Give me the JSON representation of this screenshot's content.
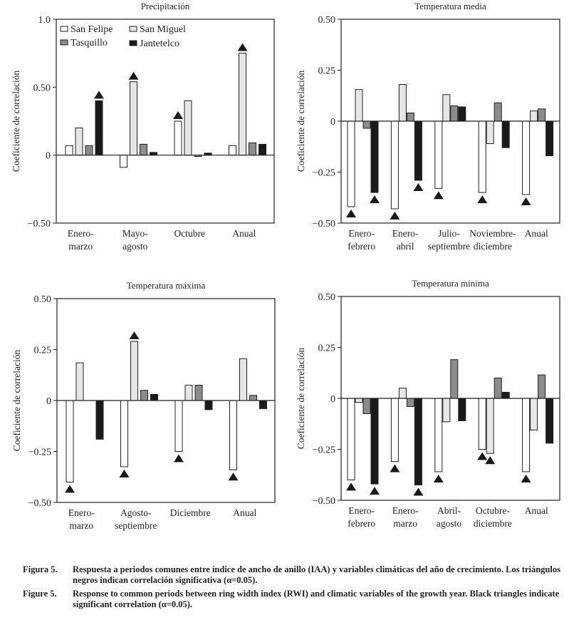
{
  "legend": [
    {
      "name": "San Felipe",
      "color": "#ffffff"
    },
    {
      "name": "Tasquillo",
      "color": "#8c8c8c"
    },
    {
      "name": "San Miguel",
      "color": "#e6e6e6"
    },
    {
      "name": "Jantetelco",
      "color": "#1a1a1a"
    }
  ],
  "chart_data": [
    {
      "type": "bar",
      "title": "Precipitación",
      "ylabel": "Coeficiente de correlación",
      "ylim": [
        -0.5,
        1.0
      ],
      "yticks": [
        {
          "value": 1.0,
          "label": "1.0"
        },
        {
          "value": 0.5,
          "label": "0.50"
        },
        {
          "value": 0,
          "label": "0"
        },
        {
          "value": -0.5,
          "label": "−0.50"
        }
      ],
      "categories": [
        [
          "Enero-",
          "marzo"
        ],
        [
          "Mayo-",
          "agosto"
        ],
        [
          "Octubre"
        ],
        [
          "Anual"
        ]
      ],
      "series": [
        {
          "name": "San Felipe",
          "color": "#ffffff",
          "values": [
            0.07,
            -0.09,
            0.25,
            0.07
          ],
          "significant": [
            false,
            false,
            true,
            false
          ]
        },
        {
          "name": "San Miguel",
          "color": "#e6e6e6",
          "values": [
            0.2,
            0.54,
            0.4,
            0.75
          ],
          "significant": [
            false,
            true,
            false,
            true
          ]
        },
        {
          "name": "Tasquillo",
          "color": "#8c8c8c",
          "values": [
            0.07,
            0.08,
            -0.01,
            0.09
          ],
          "significant": [
            false,
            false,
            false,
            false
          ]
        },
        {
          "name": "Jantetelco",
          "color": "#1a1a1a",
          "values": [
            0.4,
            0.02,
            0.015,
            0.08
          ],
          "significant": [
            true,
            false,
            false,
            false
          ]
        }
      ]
    },
    {
      "type": "bar",
      "title": "Temperatura media",
      "ylabel": "Coeficiente de correlación",
      "ylim": [
        -0.5,
        0.5
      ],
      "yticks": [
        {
          "value": 0.5,
          "label": "0.50"
        },
        {
          "value": 0.25,
          "label": "0.25"
        },
        {
          "value": 0,
          "label": "0"
        },
        {
          "value": -0.25,
          "label": "−0.25"
        },
        {
          "value": -0.5,
          "label": "−0.50"
        }
      ],
      "categories": [
        [
          "Enero-",
          "febrero"
        ],
        [
          "Enero-",
          "abril"
        ],
        [
          "Julio-",
          "septiembre"
        ],
        [
          "Noviembre-",
          "diciembre"
        ],
        [
          "Anual"
        ]
      ],
      "series": [
        {
          "name": "San Felipe",
          "color": "#ffffff",
          "values": [
            -0.42,
            -0.43,
            -0.33,
            -0.35,
            -0.36
          ],
          "significant": [
            true,
            true,
            true,
            true,
            true
          ]
        },
        {
          "name": "San Miguel",
          "color": "#e6e6e6",
          "values": [
            0.155,
            0.18,
            0.13,
            -0.11,
            0.05
          ],
          "significant": [
            false,
            false,
            false,
            false,
            false
          ]
        },
        {
          "name": "Tasquillo",
          "color": "#8c8c8c",
          "values": [
            -0.035,
            0.04,
            0.075,
            0.09,
            0.06
          ],
          "significant": [
            false,
            false,
            false,
            false,
            false
          ]
        },
        {
          "name": "Jantetelco",
          "color": "#1a1a1a",
          "values": [
            -0.35,
            -0.29,
            0.07,
            -0.13,
            -0.17
          ],
          "significant": [
            true,
            true,
            false,
            false,
            false
          ]
        }
      ]
    },
    {
      "type": "bar",
      "title": "Temperatura máxima",
      "ylabel": "Coeficiente de correlación",
      "ylim": [
        -0.5,
        0.5
      ],
      "yticks": [
        {
          "value": 0.5,
          "label": "0.50"
        },
        {
          "value": 0.25,
          "label": "0.25"
        },
        {
          "value": 0,
          "label": "0"
        },
        {
          "value": -0.25,
          "label": "−0.25"
        },
        {
          "value": -0.5,
          "label": "−0.50"
        }
      ],
      "categories": [
        [
          "Enero-",
          "marzo"
        ],
        [
          "Agosto-",
          "septiembre"
        ],
        [
          "Diciembre"
        ],
        [
          "Anual"
        ]
      ],
      "series": [
        {
          "name": "San Felipe",
          "color": "#ffffff",
          "values": [
            -0.4,
            -0.325,
            -0.25,
            -0.34
          ],
          "significant": [
            true,
            true,
            true,
            true
          ]
        },
        {
          "name": "San Miguel",
          "color": "#e6e6e6",
          "values": [
            0.185,
            0.29,
            0.075,
            0.205
          ],
          "significant": [
            false,
            true,
            false,
            false
          ]
        },
        {
          "name": "Tasquillo",
          "color": "#8c8c8c",
          "values": [
            0,
            0.05,
            0.075,
            0.025
          ],
          "significant": [
            false,
            false,
            false,
            false
          ]
        },
        {
          "name": "Jantetelco",
          "color": "#1a1a1a",
          "values": [
            -0.19,
            0.03,
            -0.045,
            -0.04
          ],
          "significant": [
            false,
            false,
            false,
            false
          ]
        }
      ]
    },
    {
      "type": "bar",
      "title": "Temperatura mínima",
      "ylabel": "Coeficiente de correlación",
      "ylim": [
        -0.5,
        0.5
      ],
      "yticks": [
        {
          "value": 0.5,
          "label": "0.50"
        },
        {
          "value": 0.25,
          "label": "0.25"
        },
        {
          "value": 0,
          "label": "0"
        },
        {
          "value": -0.25,
          "label": "−0.25"
        },
        {
          "value": -0.5,
          "label": "−0.50"
        }
      ],
      "categories": [
        [
          "Enero-",
          "febrero"
        ],
        [
          "Enero-",
          "marzo"
        ],
        [
          "Abril-",
          "agosto"
        ],
        [
          "Octubre-",
          "diciembre"
        ],
        [
          "Anual"
        ]
      ],
      "series": [
        {
          "name": "San Felipe",
          "color": "#ffffff",
          "values": [
            -0.4,
            -0.31,
            -0.36,
            -0.25,
            -0.36
          ],
          "significant": [
            true,
            true,
            true,
            true,
            true
          ]
        },
        {
          "name": "San Miguel",
          "color": "#e6e6e6",
          "values": [
            -0.02,
            0.05,
            -0.115,
            -0.27,
            -0.155
          ],
          "significant": [
            false,
            false,
            false,
            true,
            false
          ]
        },
        {
          "name": "Tasquillo",
          "color": "#8c8c8c",
          "values": [
            -0.075,
            -0.04,
            0.19,
            0.1,
            0.115
          ],
          "significant": [
            false,
            false,
            false,
            false,
            false
          ]
        },
        {
          "name": "Jantetelco",
          "color": "#1a1a1a",
          "values": [
            -0.42,
            -0.425,
            -0.11,
            0.03,
            -0.22
          ],
          "significant": [
            true,
            true,
            false,
            false,
            false
          ]
        }
      ]
    }
  ],
  "caption": {
    "es_label": "Figura 5.",
    "es_text": "Respuesta a periodos comunes entre índice de ancho de anillo (IAA) y variables climáticas del año de crecimiento. Los triángulos negros indican  correlación significativa (α=0.05).",
    "en_label": "Figure 5.",
    "en_text": "Response to common periods between ring width index (RWI) and climatic variables of the growth year. Black triangles indicate significant correlation (α=0.05)."
  }
}
